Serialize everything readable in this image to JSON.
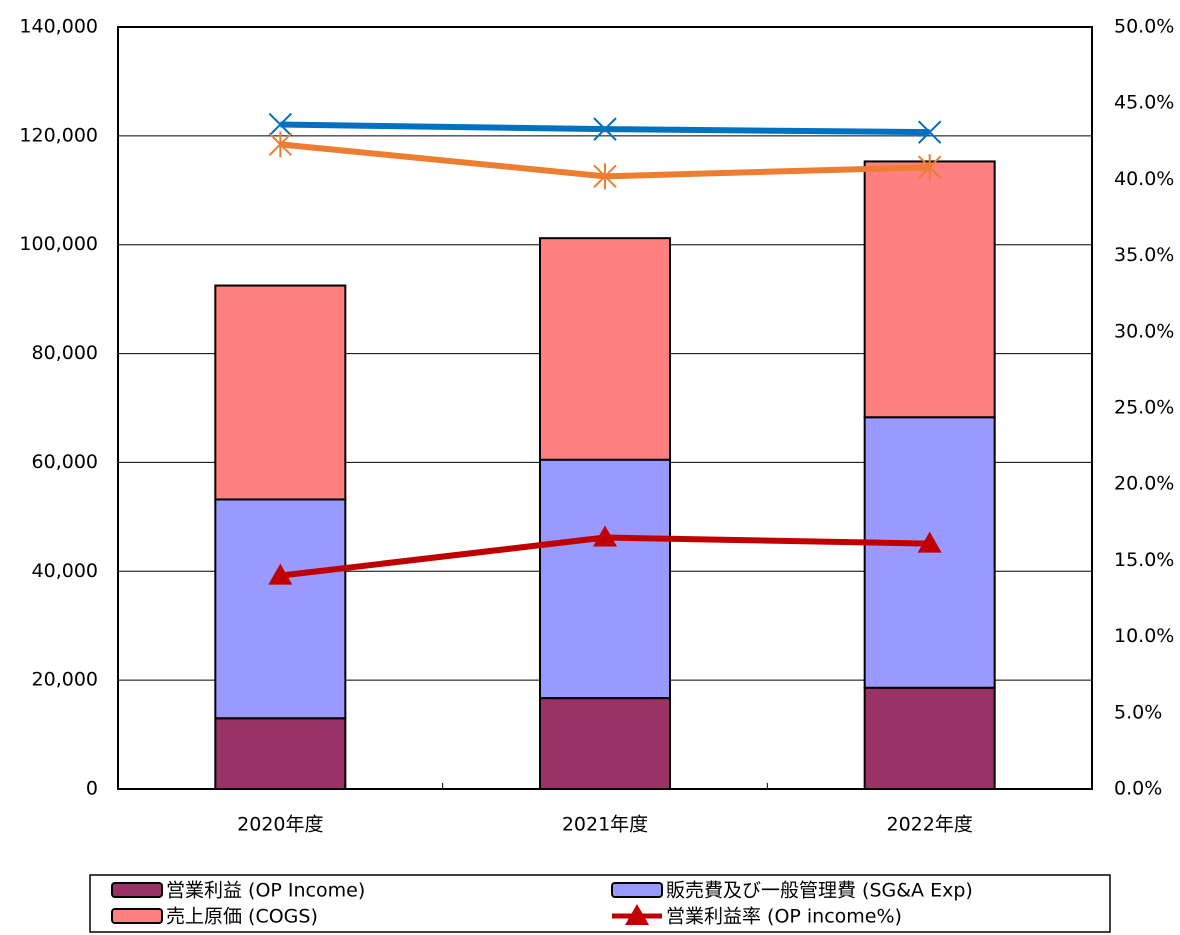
{
  "chart_data": {
    "type": "bar",
    "categories": [
      "2020年度",
      "2021年度",
      "2022年度"
    ],
    "stacked": true,
    "series": [
      {
        "name": "営業利益 (OP Income)",
        "type": "bar",
        "color": "#993366",
        "values": [
          13000,
          16700,
          18600
        ]
      },
      {
        "name": "販売費及び一般管理費 (SG&A Exp)",
        "type": "bar",
        "color": "#9999ff",
        "values": [
          40200,
          43800,
          49700
        ]
      },
      {
        "name": "売上原価 (COGS)",
        "type": "bar",
        "color": "#ff8080",
        "values": [
          39300,
          40700,
          47000
        ]
      },
      {
        "name": "営業利益率 (OP income%)",
        "type": "line",
        "axis": "y2",
        "color": "#c00000",
        "marker": "triangle",
        "values": [
          14.0,
          16.5,
          16.1
        ]
      },
      {
        "type": "line",
        "axis": "y2",
        "color": "#0070c0",
        "marker": "x",
        "values": [
          43.6,
          43.3,
          43.1
        ]
      },
      {
        "type": "line",
        "axis": "y2",
        "color": "#ed7d31",
        "marker": "star",
        "values": [
          42.3,
          40.2,
          40.8
        ]
      }
    ],
    "ylim": [
      0,
      140000
    ],
    "yticks": [
      0,
      {
        "value": 20000,
        "label": "20,000"
      },
      {
        "value": 40000,
        "label": "40,000"
      },
      {
        "value": 60000,
        "label": "60,000"
      },
      {
        "value": 80000,
        "label": "80,000"
      },
      {
        "value": 100000,
        "label": "100,000"
      },
      {
        "value": 120000,
        "label": "120,000"
      },
      {
        "value": 140000,
        "label": "140,000"
      }
    ],
    "y2lim": [
      0,
      50
    ],
    "y2ticks": [
      {
        "value": 0,
        "label": "0.0%"
      },
      {
        "value": 5,
        "label": "5.0%"
      },
      {
        "value": 10,
        "label": "10.0%"
      },
      {
        "value": 15,
        "label": "15.0%"
      },
      {
        "value": 20,
        "label": "20.0%"
      },
      {
        "value": 25,
        "label": "25.0%"
      },
      {
        "value": 30,
        "label": "30.0%"
      },
      {
        "value": 35,
        "label": "35.0%"
      },
      {
        "value": 40,
        "label": "40.0%"
      },
      {
        "value": 45,
        "label": "45.0%"
      },
      {
        "value": 50,
        "label": "50.0%"
      }
    ],
    "grid": true,
    "legend": "bottom"
  }
}
